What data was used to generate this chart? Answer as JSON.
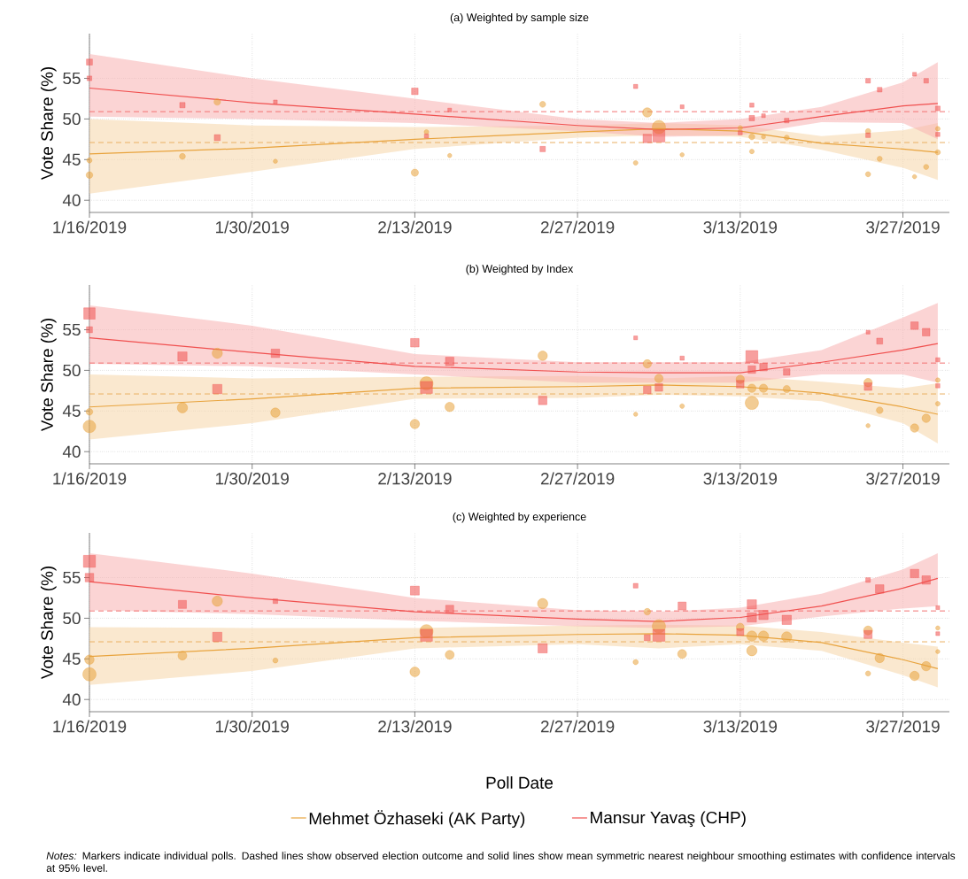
{
  "chart_data": [
    {
      "type": "bubble",
      "title": "(a) Weighted by sample size",
      "ylabel": "Vote Share (%)",
      "xlim": [
        "2019-01-16",
        "2019-03-31"
      ],
      "ylim": [
        38.5,
        60.5
      ],
      "xticks": [
        {
          "value": "2019-01-16",
          "label": "1/16/2019"
        },
        {
          "value": "2019-01-30",
          "label": "1/30/2019"
        },
        {
          "value": "2019-02-13",
          "label": "2/13/2019"
        },
        {
          "value": "2019-02-27",
          "label": "2/27/2019"
        },
        {
          "value": "2019-03-13",
          "label": "3/13/2019"
        },
        {
          "value": "2019-03-27",
          "label": "3/27/2019"
        }
      ],
      "yticks": [
        40,
        45,
        50,
        55
      ],
      "grid": true,
      "ref_lines": [
        {
          "axis": "y",
          "value": 47.1,
          "color": "#eab062",
          "line_style": "dashed"
        },
        {
          "axis": "y",
          "value": 50.9,
          "color": "#f27171",
          "line_style": "dashed"
        }
      ],
      "series": [
        {
          "type": "line",
          "color": "#e8a33d",
          "x": [
            "2019-01-16",
            "2019-01-30",
            "2019-02-13",
            "2019-02-27",
            "2019-03-06",
            "2019-03-13",
            "2019-03-20",
            "2019-03-27",
            "2019-03-30"
          ],
          "values": [
            45.7,
            46.4,
            47.5,
            48.4,
            48.8,
            48.5,
            47.0,
            46.3,
            45.9
          ],
          "lower": [
            40.8,
            43.5,
            46.3,
            47.7,
            48.0,
            47.8,
            46.2,
            44.0,
            42.5
          ],
          "upper": [
            50.0,
            49.2,
            49.0,
            49.2,
            49.5,
            49.2,
            47.9,
            48.6,
            49.5
          ]
        },
        {
          "type": "line",
          "color": "#f0504f",
          "x": [
            "2019-01-16",
            "2019-01-30",
            "2019-02-13",
            "2019-02-27",
            "2019-03-06",
            "2019-03-13",
            "2019-03-20",
            "2019-03-27",
            "2019-03-30"
          ],
          "values": [
            53.8,
            52.0,
            50.6,
            49.2,
            48.7,
            48.9,
            50.3,
            51.6,
            51.9
          ],
          "lower": [
            50.3,
            50.0,
            49.5,
            48.5,
            47.8,
            48.0,
            49.6,
            49.5,
            47.5
          ],
          "upper": [
            58.0,
            55.0,
            52.5,
            50.0,
            49.5,
            50.0,
            51.5,
            54.5,
            57.0
          ]
        },
        {
          "type": "bubble",
          "marker": "circle",
          "color": "#e8a33d",
          "x": [
            "2019-01-16",
            "2019-01-16",
            "2019-01-24",
            "2019-01-27",
            "2019-02-01",
            "2019-02-13",
            "2019-02-14",
            "2019-02-16",
            "2019-02-24",
            "2019-03-04",
            "2019-03-05",
            "2019-03-06",
            "2019-03-08",
            "2019-03-13",
            "2019-03-14",
            "2019-03-14",
            "2019-03-15",
            "2019-03-17",
            "2019-03-24",
            "2019-03-24",
            "2019-03-25",
            "2019-03-28",
            "2019-03-29",
            "2019-03-30",
            "2019-03-30"
          ],
          "values": [
            43.1,
            44.9,
            45.4,
            52.1,
            44.8,
            43.4,
            48.4,
            45.5,
            51.8,
            44.6,
            50.8,
            49.0,
            45.6,
            48.9,
            46.0,
            47.8,
            47.8,
            47.7,
            43.2,
            48.5,
            45.1,
            42.9,
            44.1,
            45.9,
            48.8
          ],
          "sizes": [
            0.25,
            0.15,
            0.2,
            0.25,
            0.1,
            0.3,
            0.12,
            0.1,
            0.2,
            0.12,
            0.5,
            1.0,
            0.1,
            0.12,
            0.12,
            0.2,
            0.1,
            0.15,
            0.15,
            0.15,
            0.15,
            0.1,
            0.15,
            0.15,
            0.12
          ]
        },
        {
          "type": "bubble",
          "marker": "square",
          "color": "#f0504f",
          "x": [
            "2019-01-16",
            "2019-01-16",
            "2019-01-24",
            "2019-01-27",
            "2019-02-01",
            "2019-02-13",
            "2019-02-14",
            "2019-02-16",
            "2019-02-24",
            "2019-03-04",
            "2019-03-05",
            "2019-03-06",
            "2019-03-08",
            "2019-03-13",
            "2019-03-14",
            "2019-03-14",
            "2019-03-15",
            "2019-03-17",
            "2019-03-24",
            "2019-03-24",
            "2019-03-25",
            "2019-03-28",
            "2019-03-29",
            "2019-03-30",
            "2019-03-30"
          ],
          "values": [
            57.0,
            55.0,
            51.7,
            47.7,
            52.1,
            53.4,
            47.9,
            51.1,
            46.3,
            54.0,
            47.6,
            47.9,
            51.5,
            48.3,
            51.7,
            50.1,
            50.4,
            49.8,
            54.7,
            48.0,
            53.6,
            55.5,
            54.7,
            51.3,
            48.1
          ],
          "sizes": [
            0.25,
            0.15,
            0.2,
            0.25,
            0.1,
            0.3,
            0.12,
            0.1,
            0.2,
            0.12,
            0.5,
            1.0,
            0.1,
            0.12,
            0.12,
            0.2,
            0.1,
            0.15,
            0.15,
            0.15,
            0.15,
            0.1,
            0.15,
            0.15,
            0.12
          ]
        }
      ]
    },
    {
      "type": "bubble",
      "title": "(b) Weighted by Index",
      "ylabel": "Vote Share (%)",
      "xlim": [
        "2019-01-16",
        "2019-03-31"
      ],
      "ylim": [
        38.5,
        60.5
      ],
      "xticks": [
        {
          "value": "2019-01-16",
          "label": "1/16/2019"
        },
        {
          "value": "2019-01-30",
          "label": "1/30/2019"
        },
        {
          "value": "2019-02-13",
          "label": "2/13/2019"
        },
        {
          "value": "2019-02-27",
          "label": "2/27/2019"
        },
        {
          "value": "2019-03-13",
          "label": "3/13/2019"
        },
        {
          "value": "2019-03-27",
          "label": "3/27/2019"
        }
      ],
      "yticks": [
        40,
        45,
        50,
        55
      ],
      "grid": true,
      "ref_lines": [
        {
          "axis": "y",
          "value": 47.1,
          "color": "#eab062",
          "line_style": "dashed"
        },
        {
          "axis": "y",
          "value": 50.9,
          "color": "#f27171",
          "line_style": "dashed"
        }
      ],
      "series": [
        {
          "type": "line",
          "color": "#e8a33d",
          "x": [
            "2019-01-16",
            "2019-01-30",
            "2019-02-13",
            "2019-02-27",
            "2019-03-06",
            "2019-03-13",
            "2019-03-20",
            "2019-03-27",
            "2019-03-30"
          ],
          "values": [
            45.5,
            46.5,
            47.8,
            48.0,
            48.2,
            48.0,
            47.2,
            45.5,
            44.6
          ],
          "lower": [
            41.5,
            43.5,
            46.5,
            46.6,
            47.0,
            46.8,
            46.2,
            43.5,
            41.0
          ],
          "upper": [
            49.5,
            49.0,
            49.2,
            49.3,
            49.0,
            49.3,
            48.6,
            47.8,
            48.4
          ]
        },
        {
          "type": "line",
          "color": "#f0504f",
          "x": [
            "2019-01-16",
            "2019-01-30",
            "2019-02-13",
            "2019-02-27",
            "2019-03-06",
            "2019-03-13",
            "2019-03-20",
            "2019-03-27",
            "2019-03-30"
          ],
          "values": [
            54.0,
            52.2,
            50.5,
            49.8,
            49.7,
            49.7,
            51.0,
            52.5,
            53.3
          ],
          "lower": [
            50.8,
            50.5,
            49.5,
            48.5,
            48.5,
            48.5,
            49.5,
            49.5,
            48.5
          ],
          "upper": [
            58.0,
            55.5,
            52.0,
            51.0,
            51.0,
            51.0,
            52.5,
            56.5,
            58.3
          ]
        },
        {
          "type": "bubble",
          "marker": "circle",
          "color": "#e8a33d",
          "x": [
            "2019-01-16",
            "2019-01-16",
            "2019-01-24",
            "2019-01-27",
            "2019-02-01",
            "2019-02-13",
            "2019-02-14",
            "2019-02-16",
            "2019-02-24",
            "2019-03-04",
            "2019-03-05",
            "2019-03-06",
            "2019-03-08",
            "2019-03-13",
            "2019-03-14",
            "2019-03-14",
            "2019-03-15",
            "2019-03-17",
            "2019-03-24",
            "2019-03-24",
            "2019-03-25",
            "2019-03-28",
            "2019-03-29",
            "2019-03-30",
            "2019-03-30"
          ],
          "values": [
            43.1,
            44.9,
            45.4,
            52.1,
            44.8,
            43.4,
            48.4,
            45.5,
            51.8,
            44.6,
            50.8,
            49.0,
            45.6,
            48.9,
            46.0,
            47.8,
            47.8,
            47.7,
            43.2,
            48.5,
            45.1,
            42.9,
            44.1,
            45.9,
            48.8
          ],
          "sizes": [
            0.9,
            0.25,
            0.6,
            0.6,
            0.5,
            0.5,
            1.0,
            0.5,
            0.5,
            0.1,
            0.4,
            0.4,
            0.12,
            0.4,
            1.0,
            0.4,
            0.4,
            0.3,
            0.1,
            0.4,
            0.25,
            0.4,
            0.4,
            0.12,
            0.12
          ]
        },
        {
          "type": "bubble",
          "marker": "square",
          "color": "#f0504f",
          "x": [
            "2019-01-16",
            "2019-01-16",
            "2019-01-24",
            "2019-01-27",
            "2019-02-01",
            "2019-02-13",
            "2019-02-14",
            "2019-02-16",
            "2019-02-24",
            "2019-03-04",
            "2019-03-05",
            "2019-03-06",
            "2019-03-08",
            "2019-03-13",
            "2019-03-14",
            "2019-03-14",
            "2019-03-15",
            "2019-03-17",
            "2019-03-24",
            "2019-03-24",
            "2019-03-25",
            "2019-03-28",
            "2019-03-29",
            "2019-03-30",
            "2019-03-30"
          ],
          "values": [
            57.0,
            55.0,
            51.7,
            47.7,
            52.1,
            53.4,
            47.9,
            51.1,
            46.3,
            54.0,
            47.6,
            47.9,
            51.5,
            48.3,
            51.7,
            50.1,
            50.4,
            49.8,
            54.7,
            48.0,
            53.6,
            55.5,
            54.7,
            51.3,
            48.1
          ],
          "sizes": [
            0.9,
            0.25,
            0.6,
            0.6,
            0.5,
            0.5,
            1.0,
            0.5,
            0.5,
            0.1,
            0.4,
            0.4,
            0.12,
            0.4,
            1.0,
            0.4,
            0.4,
            0.3,
            0.1,
            0.4,
            0.25,
            0.4,
            0.4,
            0.12,
            0.12
          ]
        }
      ]
    },
    {
      "type": "bubble",
      "title": "(c) Weighted by experience",
      "xlabel": "Poll Date",
      "ylabel": "Vote Share (%)",
      "xlim": [
        "2019-01-16",
        "2019-03-31"
      ],
      "ylim": [
        38.5,
        60.5
      ],
      "xticks": [
        {
          "value": "2019-01-16",
          "label": "1/16/2019"
        },
        {
          "value": "2019-01-30",
          "label": "1/30/2019"
        },
        {
          "value": "2019-02-13",
          "label": "2/13/2019"
        },
        {
          "value": "2019-02-27",
          "label": "2/27/2019"
        },
        {
          "value": "2019-03-13",
          "label": "3/13/2019"
        },
        {
          "value": "2019-03-27",
          "label": "3/27/2019"
        }
      ],
      "yticks": [
        40,
        45,
        50,
        55
      ],
      "grid": true,
      "legend": "bottom",
      "annotations": [
        "*Notes:* Markers indicate individual polls. Dashed lines show observed election outcome and solid lines show mean symmetric nearest neighbour smoothing estimates with confidence intervals at 95% level."
      ],
      "ref_lines": [
        {
          "axis": "y",
          "value": 47.1,
          "color": "#eab062",
          "line_style": "dashed"
        },
        {
          "axis": "y",
          "value": 50.9,
          "color": "#f27171",
          "line_style": "dashed"
        }
      ],
      "series": [
        {
          "name": "Mehmet Özhaseki (AK Party)",
          "type": "line",
          "color": "#e8a33d",
          "x": [
            "2019-01-16",
            "2019-01-30",
            "2019-02-13",
            "2019-02-27",
            "2019-03-06",
            "2019-03-13",
            "2019-03-20",
            "2019-03-27",
            "2019-03-30"
          ],
          "values": [
            45.3,
            46.3,
            47.6,
            48.0,
            48.1,
            47.9,
            47.0,
            44.9,
            43.8
          ],
          "lower": [
            41.8,
            43.5,
            46.3,
            46.8,
            46.3,
            46.8,
            46.0,
            43.0,
            41.5
          ],
          "upper": [
            48.9,
            48.8,
            48.8,
            49.1,
            49.2,
            49.1,
            48.3,
            47.0,
            46.5
          ]
        },
        {
          "name": "Mansur Yavaş (CHP)",
          "type": "line",
          "color": "#f0504f",
          "x": [
            "2019-01-16",
            "2019-01-30",
            "2019-02-13",
            "2019-02-27",
            "2019-03-06",
            "2019-03-13",
            "2019-03-20",
            "2019-03-27",
            "2019-03-30"
          ],
          "values": [
            54.5,
            52.5,
            50.8,
            49.9,
            49.6,
            50.1,
            51.5,
            53.7,
            54.9
          ],
          "lower": [
            51.0,
            50.5,
            49.7,
            49.0,
            48.8,
            49.0,
            50.2,
            51.2,
            51.5
          ],
          "upper": [
            58.0,
            55.5,
            52.5,
            51.0,
            50.8,
            51.3,
            53.0,
            56.0,
            58.0
          ]
        },
        {
          "type": "bubble",
          "marker": "circle",
          "color": "#e8a33d",
          "x": [
            "2019-01-16",
            "2019-01-16",
            "2019-01-24",
            "2019-01-27",
            "2019-02-01",
            "2019-02-13",
            "2019-02-14",
            "2019-02-16",
            "2019-02-24",
            "2019-03-04",
            "2019-03-05",
            "2019-03-06",
            "2019-03-08",
            "2019-03-13",
            "2019-03-14",
            "2019-03-14",
            "2019-03-15",
            "2019-03-17",
            "2019-03-24",
            "2019-03-24",
            "2019-03-25",
            "2019-03-28",
            "2019-03-29",
            "2019-03-30",
            "2019-03-30"
          ],
          "values": [
            43.1,
            44.9,
            45.4,
            52.1,
            44.8,
            43.4,
            48.4,
            45.5,
            51.8,
            44.6,
            50.8,
            49.0,
            45.6,
            48.9,
            46.0,
            47.8,
            47.8,
            47.7,
            43.2,
            48.5,
            45.1,
            42.9,
            44.1,
            45.9,
            48.8
          ],
          "sizes": [
            1.0,
            0.5,
            0.45,
            0.6,
            0.15,
            0.55,
            1.0,
            0.45,
            0.6,
            0.15,
            0.25,
            1.0,
            0.45,
            0.35,
            0.6,
            0.6,
            0.6,
            0.6,
            0.15,
            0.45,
            0.5,
            0.5,
            0.5,
            0.1,
            0.1
          ]
        },
        {
          "type": "bubble",
          "marker": "square",
          "color": "#f0504f",
          "x": [
            "2019-01-16",
            "2019-01-16",
            "2019-01-24",
            "2019-01-27",
            "2019-02-01",
            "2019-02-13",
            "2019-02-14",
            "2019-02-16",
            "2019-02-24",
            "2019-03-04",
            "2019-03-05",
            "2019-03-06",
            "2019-03-08",
            "2019-03-13",
            "2019-03-14",
            "2019-03-14",
            "2019-03-15",
            "2019-03-17",
            "2019-03-24",
            "2019-03-24",
            "2019-03-25",
            "2019-03-28",
            "2019-03-29",
            "2019-03-30",
            "2019-03-30"
          ],
          "values": [
            57.0,
            55.0,
            51.7,
            47.7,
            52.1,
            53.4,
            47.9,
            51.1,
            46.3,
            54.0,
            47.6,
            47.9,
            51.5,
            48.3,
            51.7,
            50.1,
            50.4,
            49.8,
            54.7,
            48.0,
            53.6,
            55.5,
            54.7,
            51.3,
            48.1
          ],
          "sizes": [
            1.0,
            0.5,
            0.45,
            0.6,
            0.15,
            0.55,
            1.0,
            0.45,
            0.6,
            0.15,
            0.25,
            1.0,
            0.45,
            0.35,
            0.6,
            0.6,
            0.6,
            0.6,
            0.15,
            0.45,
            0.5,
            0.5,
            0.5,
            0.1,
            0.1
          ]
        }
      ]
    }
  ]
}
